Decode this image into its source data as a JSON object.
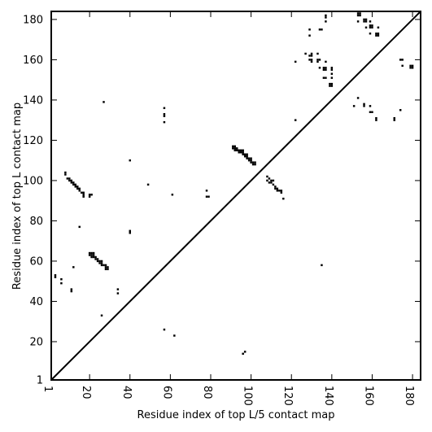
{
  "chart_data": {
    "type": "heatmap",
    "xlabel": "Residue index of top L/5 contact map",
    "ylabel": "Residue index of top L contact map",
    "xlim": [
      1,
      184
    ],
    "ylim": [
      1,
      184
    ],
    "x_ticks": [
      {
        "value": 1,
        "label": "1"
      },
      {
        "value": 20,
        "label": "20"
      },
      {
        "value": 40,
        "label": "40"
      },
      {
        "value": 60,
        "label": "60"
      },
      {
        "value": 80,
        "label": "80"
      },
      {
        "value": 100,
        "label": "100"
      },
      {
        "value": 120,
        "label": "120"
      },
      {
        "value": 140,
        "label": "140"
      },
      {
        "value": 160,
        "label": "160"
      },
      {
        "value": 180,
        "label": "180"
      }
    ],
    "y_ticks": [
      {
        "value": 1,
        "label": "1"
      },
      {
        "value": 20,
        "label": "20"
      },
      {
        "value": 40,
        "label": "40"
      },
      {
        "value": 60,
        "label": "60"
      },
      {
        "value": 80,
        "label": "80"
      },
      {
        "value": 100,
        "label": "100"
      },
      {
        "value": 120,
        "label": "120"
      },
      {
        "value": 140,
        "label": "140"
      },
      {
        "value": 160,
        "label": "160"
      },
      {
        "value": 180,
        "label": "180"
      }
    ],
    "diagonal": true,
    "cell_color": "#000000",
    "top_L_contacts": [
      [
        8,
        104
      ],
      [
        8,
        103
      ],
      [
        9,
        101
      ],
      [
        10,
        101
      ],
      [
        10,
        100
      ],
      [
        11,
        100
      ],
      [
        11,
        99
      ],
      [
        12,
        99
      ],
      [
        12,
        98
      ],
      [
        13,
        98
      ],
      [
        13,
        97
      ],
      [
        14,
        97
      ],
      [
        14,
        96
      ],
      [
        15,
        96
      ],
      [
        15,
        95
      ],
      [
        16,
        94
      ],
      [
        17,
        94
      ],
      [
        17,
        93
      ],
      [
        17,
        92
      ],
      [
        20,
        93
      ],
      [
        20,
        92
      ],
      [
        21,
        93
      ],
      [
        20,
        64
      ],
      [
        21,
        64
      ],
      [
        22,
        64
      ],
      [
        20,
        63
      ],
      [
        21,
        63
      ],
      [
        22,
        63
      ],
      [
        21,
        62
      ],
      [
        22,
        62
      ],
      [
        23,
        62
      ],
      [
        23,
        61
      ],
      [
        24,
        61
      ],
      [
        24,
        60
      ],
      [
        25,
        60
      ],
      [
        26,
        60
      ],
      [
        25,
        59
      ],
      [
        26,
        59
      ],
      [
        26,
        58
      ],
      [
        27,
        58
      ],
      [
        28,
        58
      ],
      [
        28,
        57
      ],
      [
        29,
        57
      ],
      [
        28,
        56
      ],
      [
        29,
        56
      ],
      [
        3,
        53
      ],
      [
        3,
        52
      ],
      [
        6,
        51
      ],
      [
        6,
        49
      ],
      [
        11,
        46
      ],
      [
        11,
        45
      ],
      [
        15,
        77
      ],
      [
        12,
        57
      ],
      [
        34,
        46
      ],
      [
        34,
        44
      ],
      [
        40,
        75
      ],
      [
        40,
        74
      ],
      [
        40,
        110
      ],
      [
        49,
        98
      ],
      [
        61,
        93
      ],
      [
        26,
        33
      ],
      [
        27,
        139
      ],
      [
        57,
        136
      ],
      [
        57,
        133
      ],
      [
        57,
        132
      ],
      [
        57,
        129
      ],
      [
        78,
        95
      ],
      [
        78,
        92
      ],
      [
        79,
        92
      ],
      [
        91,
        117
      ],
      [
        92,
        117
      ],
      [
        91,
        116
      ],
      [
        92,
        116
      ],
      [
        93,
        116
      ],
      [
        92,
        115
      ],
      [
        93,
        115
      ],
      [
        94,
        115
      ],
      [
        95,
        115
      ],
      [
        96,
        115
      ],
      [
        94,
        114
      ],
      [
        95,
        114
      ],
      [
        96,
        114
      ],
      [
        96,
        113
      ],
      [
        97,
        113
      ],
      [
        98,
        113
      ],
      [
        97,
        112
      ],
      [
        98,
        112
      ],
      [
        98,
        111
      ],
      [
        99,
        111
      ],
      [
        100,
        111
      ],
      [
        99,
        110
      ],
      [
        100,
        110
      ],
      [
        100,
        109
      ],
      [
        101,
        109
      ],
      [
        102,
        109
      ],
      [
        101,
        108
      ],
      [
        102,
        108
      ],
      [
        108,
        102
      ],
      [
        108,
        100
      ],
      [
        109,
        101
      ],
      [
        109,
        99
      ],
      [
        110,
        100
      ],
      [
        110,
        99
      ],
      [
        111,
        98
      ],
      [
        111,
        100
      ],
      [
        112,
        97
      ],
      [
        112,
        96
      ],
      [
        113,
        96
      ],
      [
        113,
        95
      ],
      [
        114,
        95
      ],
      [
        115,
        95
      ],
      [
        115,
        94
      ],
      [
        116,
        91
      ],
      [
        122,
        159
      ],
      [
        122,
        130
      ],
      [
        127,
        163
      ],
      [
        129,
        175
      ],
      [
        129,
        172
      ],
      [
        130,
        163
      ],
      [
        130,
        162
      ],
      [
        129,
        162
      ],
      [
        129,
        160
      ],
      [
        130,
        160
      ],
      [
        130,
        159
      ],
      [
        133,
        159
      ],
      [
        133,
        160
      ],
      [
        134,
        160
      ],
      [
        133,
        163
      ],
      [
        134,
        175
      ],
      [
        135,
        175
      ],
      [
        134,
        156
      ],
      [
        136,
        156
      ],
      [
        136,
        155
      ],
      [
        137,
        156
      ],
      [
        137,
        155
      ],
      [
        136,
        151
      ],
      [
        137,
        151
      ],
      [
        137,
        159
      ],
      [
        137,
        179
      ],
      [
        137,
        181
      ],
      [
        137,
        182
      ],
      [
        140,
        156
      ],
      [
        140,
        155
      ],
      [
        140,
        153
      ],
      [
        140,
        151
      ],
      [
        140,
        148
      ],
      [
        140,
        147
      ],
      [
        139,
        148
      ],
      [
        139,
        147
      ],
      [
        153,
        183
      ],
      [
        154,
        183
      ],
      [
        153,
        182
      ],
      [
        154,
        182
      ],
      [
        153,
        179
      ],
      [
        156,
        180
      ],
      [
        157,
        180
      ],
      [
        156,
        179
      ],
      [
        157,
        179
      ],
      [
        157,
        176
      ],
      [
        159,
        179
      ],
      [
        159,
        177
      ],
      [
        160,
        177
      ],
      [
        159,
        176
      ],
      [
        160,
        176
      ],
      [
        159,
        173
      ],
      [
        163,
        176
      ],
      [
        162,
        173
      ],
      [
        163,
        173
      ],
      [
        162,
        172
      ],
      [
        163,
        172
      ],
      [
        151,
        137
      ],
      [
        153,
        141
      ],
      [
        156,
        138
      ],
      [
        156,
        137
      ],
      [
        159,
        137
      ],
      [
        159,
        134
      ],
      [
        160,
        134
      ],
      [
        162,
        131
      ],
      [
        162,
        130
      ],
      [
        171,
        131
      ],
      [
        171,
        130
      ],
      [
        174,
        135
      ],
      [
        174,
        160
      ],
      [
        175,
        160
      ],
      [
        175,
        157
      ],
      [
        179,
        157
      ],
      [
        180,
        157
      ],
      [
        179,
        156
      ],
      [
        180,
        156
      ]
    ],
    "top_L5_contacts": [
      [
        57,
        26
      ],
      [
        62,
        23
      ],
      [
        96,
        14
      ],
      [
        97,
        15
      ],
      [
        135,
        58
      ]
    ]
  }
}
